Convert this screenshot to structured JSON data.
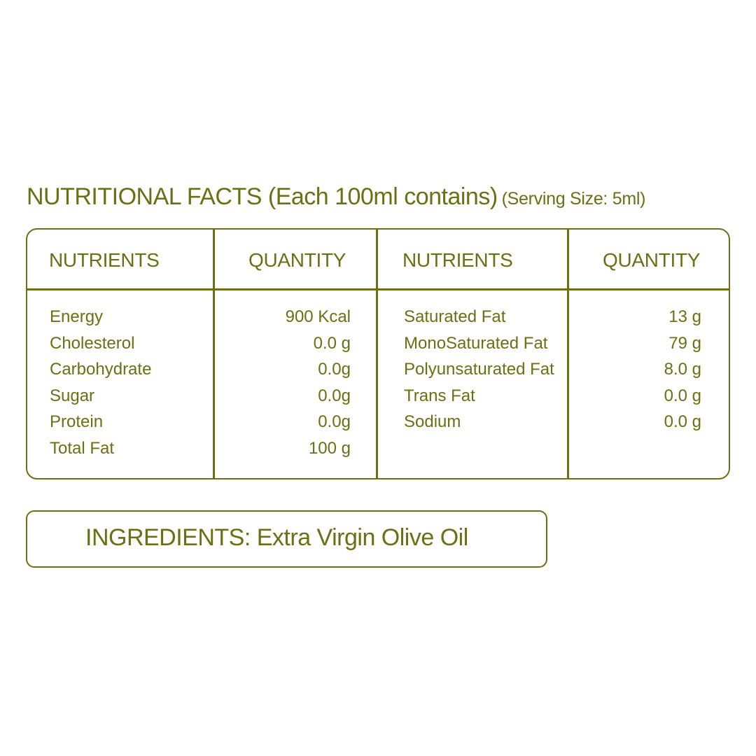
{
  "title": {
    "main": "NUTRITIONAL FACTS (Each 100ml contains)",
    "serving": "(Serving Size: 5ml)"
  },
  "table": {
    "headers": [
      "NUTRIENTS",
      "QUANTITY",
      "NUTRIENTS",
      "QUANTITY"
    ],
    "left": [
      {
        "name": "Energy",
        "qty": "900 Kcal"
      },
      {
        "name": "Cholesterol",
        "qty": "0.0 g"
      },
      {
        "name": "Carbohydrate",
        "qty": "0.0g"
      },
      {
        "name": "Sugar",
        "qty": "0.0g"
      },
      {
        "name": "Protein",
        "qty": "0.0g"
      },
      {
        "name": "Total Fat",
        "qty": "100 g"
      }
    ],
    "right": [
      {
        "name": "Saturated Fat",
        "qty": "13  g"
      },
      {
        "name": "MonoSaturated Fat",
        "qty": "79 g"
      },
      {
        "name": "Polyunsaturated Fat",
        "qty": "8.0 g"
      },
      {
        "name": "Trans Fat",
        "qty": "0.0 g"
      },
      {
        "name": "Sodium",
        "qty": "0.0 g"
      }
    ]
  },
  "ingredients": "INGREDIENTS: Extra Virgin Olive Oil",
  "colors": {
    "text": "#6b7014",
    "background": "#ffffff"
  }
}
